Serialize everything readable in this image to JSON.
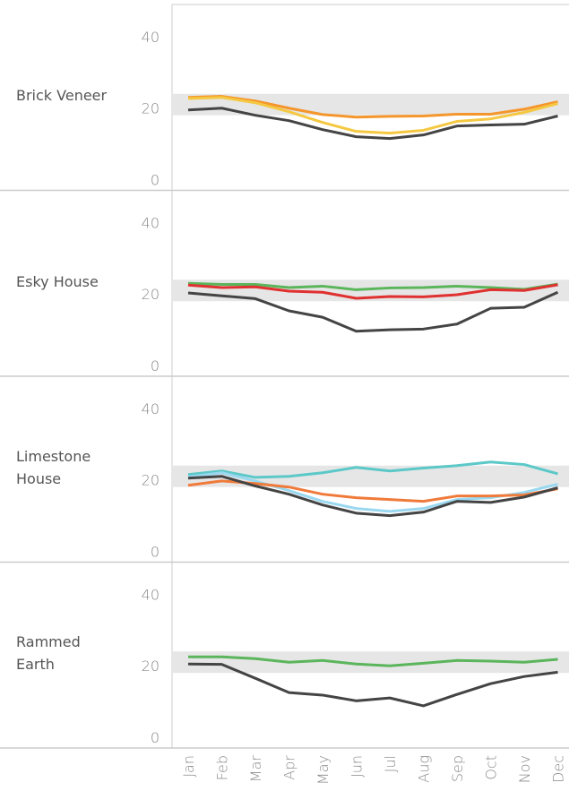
{
  "chart_data": [
    {
      "type": "line",
      "title": "Brick Veneer",
      "band": [
        18,
        24
      ],
      "band_color": "#e6e6e6",
      "categories": [
        "Jan",
        "Feb",
        "Mar",
        "Apr",
        "May",
        "Jun",
        "Jul",
        "Aug",
        "Sep",
        "Oct",
        "Nov",
        "Dec"
      ],
      "ylim": [
        -3,
        49
      ],
      "yticks": [
        0,
        20,
        40
      ],
      "series": [
        {
          "color": "#f4962c",
          "values": [
            23,
            23.3,
            22,
            20,
            18.2,
            17.5,
            17.7,
            17.8,
            18.3,
            18.3,
            19.7,
            21.8
          ]
        },
        {
          "color": "#f5c842",
          "values": [
            22.7,
            23,
            21.5,
            19,
            16,
            13.5,
            13,
            13.8,
            16.3,
            17,
            18.8,
            21.3
          ]
        },
        {
          "color": "#444444",
          "values": [
            19.5,
            20,
            18,
            16.5,
            14,
            12,
            11.5,
            12.5,
            15,
            15.3,
            15.5,
            17.8
          ]
        }
      ]
    },
    {
      "type": "line",
      "title": "Esky House",
      "band": [
        18,
        24
      ],
      "band_color": "#e6e6e6",
      "categories": [
        "Jan",
        "Feb",
        "Mar",
        "Apr",
        "May",
        "Jun",
        "Jul",
        "Aug",
        "Sep",
        "Oct",
        "Nov",
        "Dec"
      ],
      "ylim": [
        -3,
        49
      ],
      "yticks": [
        0,
        20,
        40
      ],
      "series": [
        {
          "color": "#5bb55b",
          "values": [
            23,
            22.7,
            22.7,
            21.8,
            22.2,
            21.2,
            21.7,
            21.8,
            22.2,
            21.8,
            21.3,
            22.8
          ]
        },
        {
          "color": "#e03030",
          "values": [
            22.5,
            21.8,
            22,
            20.8,
            20.5,
            18.8,
            19.3,
            19.2,
            19.8,
            21.2,
            21,
            22.6
          ]
        },
        {
          "color": "#444444",
          "values": [
            20.3,
            19.5,
            18.7,
            15.3,
            13.5,
            9.6,
            10,
            10.2,
            11.6,
            16,
            16.3,
            20.5
          ]
        }
      ]
    },
    {
      "type": "line",
      "title": "Limestone House",
      "band": [
        18,
        24
      ],
      "band_color": "#e6e6e6",
      "categories": [
        "Jan",
        "Feb",
        "Mar",
        "Apr",
        "May",
        "Jun",
        "Jul",
        "Aug",
        "Sep",
        "Oct",
        "Nov",
        "Dec"
      ],
      "ylim": [
        -3,
        49
      ],
      "yticks": [
        0,
        20,
        40
      ],
      "series": [
        {
          "color": "#5cc8c8",
          "values": [
            21.5,
            22.5,
            20.7,
            21,
            22,
            23.5,
            22.5,
            23.3,
            24,
            25,
            24.3,
            21.7
          ]
        },
        {
          "color": "#9ad8f0",
          "values": [
            20.8,
            22,
            19.7,
            17,
            14,
            12,
            11.2,
            12,
            14.5,
            15,
            16.5,
            18.8
          ]
        },
        {
          "color": "#f07a3a",
          "values": [
            18.5,
            19.7,
            19,
            18,
            16,
            15,
            14.5,
            14,
            15.5,
            15.5,
            15.8,
            17.5
          ]
        },
        {
          "color": "#444444",
          "values": [
            20.5,
            21,
            18.3,
            16,
            13,
            10.7,
            10,
            11,
            14,
            13.7,
            15.2,
            17.8
          ]
        }
      ]
    },
    {
      "type": "line",
      "title": "Rammed Earth",
      "band": [
        18,
        24
      ],
      "band_color": "#e6e6e6",
      "categories": [
        "Jan",
        "Feb",
        "Mar",
        "Apr",
        "May",
        "Jun",
        "Jul",
        "Aug",
        "Sep",
        "Oct",
        "Nov",
        "Dec"
      ],
      "ylim": [
        -3,
        49
      ],
      "yticks": [
        0,
        20,
        40
      ],
      "series": [
        {
          "color": "#5bb55b",
          "values": [
            22.5,
            22.5,
            22,
            21,
            21.5,
            20.5,
            20,
            20.7,
            21.5,
            21.3,
            21,
            21.8
          ]
        },
        {
          "color": "#444444",
          "values": [
            20.5,
            20.4,
            16.5,
            12.5,
            11.8,
            10.2,
            11,
            8.8,
            12,
            15,
            17,
            18.2
          ]
        }
      ]
    }
  ]
}
